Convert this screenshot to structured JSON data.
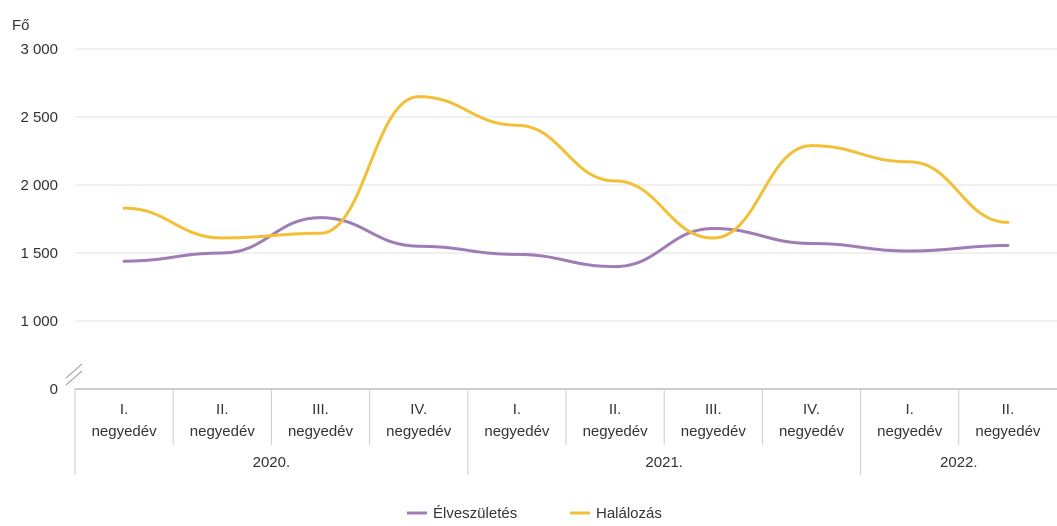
{
  "chart_data": {
    "type": "line",
    "y_unit_label": "Fő",
    "y_ticks": [
      {
        "value": 0,
        "label": "0"
      },
      {
        "value": 1000,
        "label": "1 000"
      },
      {
        "value": 1500,
        "label": "1 500"
      },
      {
        "value": 2000,
        "label": "2 000"
      },
      {
        "value": 2500,
        "label": "2 500"
      },
      {
        "value": 3000,
        "label": "3 000"
      }
    ],
    "y_axis_break": true,
    "ylim": [
      1000,
      3000
    ],
    "grid": true,
    "legend_position": "bottom",
    "categories": [
      {
        "quarter": "I.",
        "sub": "negyedév"
      },
      {
        "quarter": "II.",
        "sub": "negyedév"
      },
      {
        "quarter": "III.",
        "sub": "negyedév"
      },
      {
        "quarter": "IV.",
        "sub": "negyedév"
      },
      {
        "quarter": "I.",
        "sub": "negyedév"
      },
      {
        "quarter": "II.",
        "sub": "negyedév"
      },
      {
        "quarter": "III.",
        "sub": "negyedév"
      },
      {
        "quarter": "IV.",
        "sub": "negyedév"
      },
      {
        "quarter": "I.",
        "sub": "negyedév"
      },
      {
        "quarter": "II.",
        "sub": "negyedév"
      }
    ],
    "years": [
      {
        "label": "2020.",
        "start": 0,
        "end": 3
      },
      {
        "label": "2021.",
        "start": 4,
        "end": 7
      },
      {
        "label": "2022.",
        "start": 8,
        "end": 9
      }
    ],
    "series": [
      {
        "name": "Élveszületés",
        "color": "#a07cb4",
        "values": [
          1440,
          1500,
          1760,
          1550,
          1490,
          1400,
          1680,
          1570,
          1515,
          1555
        ]
      },
      {
        "name": "Halálozás",
        "color": "#f2c037",
        "values": [
          1830,
          1610,
          1645,
          2650,
          2440,
          2030,
          1610,
          2290,
          2170,
          1725
        ]
      }
    ]
  }
}
